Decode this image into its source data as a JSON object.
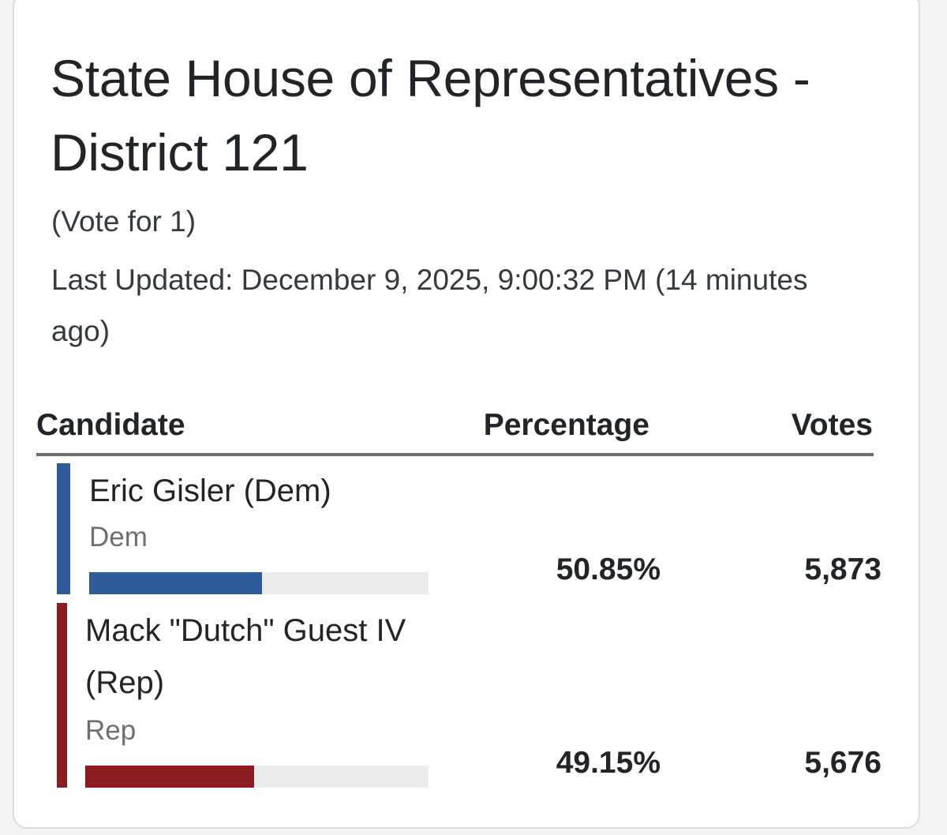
{
  "contest": {
    "title": "State House of Representatives - District 121",
    "vote_for": "(Vote for 1)",
    "last_updated": "Last Updated: December 9, 2025, 9:00:32 PM (14 minutes ago)"
  },
  "table": {
    "headers": {
      "candidate": "Candidate",
      "percentage": "Percentage",
      "votes": "Votes"
    },
    "rows": [
      {
        "name": "Eric Gisler (Dem)",
        "party": "Dem",
        "percentage": "50.85%",
        "percentage_value": 50.85,
        "votes": "5,873",
        "color": "#2f5b9a"
      },
      {
        "name": "Mack \"Dutch\" Guest IV (Rep)",
        "party": "Rep",
        "percentage": "49.15%",
        "percentage_value": 49.15,
        "votes": "5,676",
        "color": "#8a1c22"
      }
    ]
  }
}
